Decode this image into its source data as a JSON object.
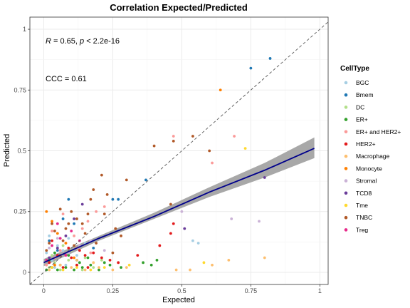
{
  "chart_data": {
    "type": "scatter",
    "title": "Correlation Expected/Predicted",
    "xlabel": "Expected",
    "ylabel": "Predicted",
    "xlim": [
      -0.05,
      1.03
    ],
    "ylim": [
      -0.05,
      1.05
    ],
    "x_ticks": [
      0,
      0.25,
      0.5,
      0.75,
      1
    ],
    "x_tick_labels": [
      "0",
      "0.25",
      "0.5",
      "0.75",
      "1"
    ],
    "y_ticks": [
      0,
      0.25,
      0.5,
      0.75,
      1
    ],
    "y_tick_labels": [
      "0",
      "0.25",
      "0.5",
      "0.75",
      "1"
    ],
    "grid": true,
    "legend_position": "right",
    "annotations": {
      "correlation": {
        "r_label": "R",
        "r_value": " = 0.65, ",
        "p_label": "p",
        "p_value": " < 2.2e-16"
      },
      "ccc": "CCC = 0.61"
    },
    "identity_line": {
      "x": [
        -0.05,
        1.03
      ],
      "y": [
        -0.05,
        1.03
      ],
      "style": "dashed",
      "color": "#555555"
    },
    "regression": {
      "color": "#00008b",
      "x": [
        0,
        0.2,
        0.4,
        0.6,
        0.8,
        0.98
      ],
      "y": [
        0.04,
        0.14,
        0.23,
        0.33,
        0.42,
        0.51
      ],
      "ci_lower": [
        0.025,
        0.13,
        0.22,
        0.31,
        0.39,
        0.47
      ],
      "ci_upper": [
        0.055,
        0.15,
        0.245,
        0.35,
        0.45,
        0.555
      ],
      "ci_color": "#999999"
    },
    "legend_title": "CellType",
    "series": [
      {
        "name": "BGC",
        "color": "#a6cee3",
        "points": [
          [
            0.01,
            0.08
          ],
          [
            0.03,
            0.05
          ],
          [
            0.05,
            0.11
          ],
          [
            0.08,
            0.03
          ],
          [
            0.12,
            0.07
          ],
          [
            0.02,
            0.15
          ],
          [
            0.07,
            0.09
          ],
          [
            0.15,
            0.12
          ],
          [
            0.54,
            0.13
          ],
          [
            0.56,
            0.12
          ],
          [
            0.04,
            0.02
          ],
          [
            0.09,
            0.14
          ]
        ]
      },
      {
        "name": "Bmem",
        "color": "#1f78b4",
        "points": [
          [
            0.75,
            0.84
          ],
          [
            0.82,
            0.88
          ],
          [
            0.37,
            0.38
          ],
          [
            0.25,
            0.3
          ],
          [
            0.27,
            0.3
          ],
          [
            0.07,
            0.22
          ],
          [
            0.09,
            0.3
          ],
          [
            0.02,
            0.13
          ],
          [
            0.12,
            0.05
          ],
          [
            0.05,
            0.09
          ],
          [
            0.11,
            0.2
          ],
          [
            0.18,
            0.1
          ]
        ]
      },
      {
        "name": "DC",
        "color": "#b2df8a",
        "points": [
          [
            0.02,
            0.02
          ],
          [
            0.04,
            0.04
          ],
          [
            0.06,
            0.01
          ],
          [
            0.09,
            0.05
          ],
          [
            0.12,
            0.03
          ],
          [
            0.15,
            0.06
          ],
          [
            0.18,
            0.02
          ],
          [
            0.03,
            0.07
          ],
          [
            0.1,
            0.09
          ],
          [
            0.21,
            0.05
          ],
          [
            0.07,
            0.11
          ],
          [
            0.14,
            0.01
          ]
        ]
      },
      {
        "name": "ER+",
        "color": "#33a02c",
        "points": [
          [
            0.01,
            0.01
          ],
          [
            0.03,
            0.02
          ],
          [
            0.05,
            0.01
          ],
          [
            0.08,
            0.02
          ],
          [
            0.11,
            0.01
          ],
          [
            0.14,
            0.02
          ],
          [
            0.17,
            0.03
          ],
          [
            0.2,
            0.01
          ],
          [
            0.24,
            0.03
          ],
          [
            0.28,
            0.02
          ],
          [
            0.36,
            0.04
          ],
          [
            0.39,
            0.03
          ],
          [
            0.41,
            0.05
          ],
          [
            0.02,
            0.05
          ],
          [
            0.06,
            0.03
          ],
          [
            0.09,
            0.07
          ],
          [
            0.13,
            0.04
          ],
          [
            0.16,
            0.06
          ],
          [
            0.22,
            0.04
          ],
          [
            0.04,
            0.08
          ]
        ]
      },
      {
        "name": "ER+ and HER2+",
        "color": "#fb9a99",
        "points": [
          [
            0.01,
            0.03
          ],
          [
            0.04,
            0.06
          ],
          [
            0.06,
            0.09
          ],
          [
            0.08,
            0.12
          ],
          [
            0.11,
            0.15
          ],
          [
            0.14,
            0.18
          ],
          [
            0.16,
            0.21
          ],
          [
            0.19,
            0.25
          ],
          [
            0.22,
            0.27
          ],
          [
            0.47,
            0.56
          ],
          [
            0.61,
            0.45
          ],
          [
            0.69,
            0.56
          ],
          [
            0.03,
            0.17
          ],
          [
            0.07,
            0.24
          ],
          [
            0.12,
            0.1
          ],
          [
            0.17,
            0.08
          ]
        ]
      },
      {
        "name": "HER2+",
        "color": "#e31a1c",
        "points": [
          [
            0.02,
            0.04
          ],
          [
            0.05,
            0.07
          ],
          [
            0.07,
            0.02
          ],
          [
            0.1,
            0.06
          ],
          [
            0.12,
            0.03
          ],
          [
            0.15,
            0.07
          ],
          [
            0.18,
            0.08
          ],
          [
            0.21,
            0.06
          ],
          [
            0.24,
            0.05
          ],
          [
            0.27,
            0.04
          ],
          [
            0.16,
            0.02
          ],
          [
            0.09,
            0.1
          ],
          [
            0.47,
            0.2
          ],
          [
            0.46,
            0.16
          ],
          [
            0.42,
            0.11
          ],
          [
            0.34,
            0.07
          ],
          [
            0.03,
            0.13
          ],
          [
            0.13,
            0.09
          ]
        ]
      },
      {
        "name": "Macrophage",
        "color": "#fdbf6f",
        "points": [
          [
            0.02,
            0.01
          ],
          [
            0.06,
            0.03
          ],
          [
            0.1,
            0.02
          ],
          [
            0.15,
            0.01
          ],
          [
            0.2,
            0.02
          ],
          [
            0.25,
            0.01
          ],
          [
            0.3,
            0.02
          ],
          [
            0.48,
            0.01
          ],
          [
            0.53,
            0.01
          ],
          [
            0.61,
            0.03
          ],
          [
            0.67,
            0.05
          ],
          [
            0.8,
            0.06
          ],
          [
            0.12,
            0.05
          ],
          [
            0.18,
            0.04
          ]
        ]
      },
      {
        "name": "Monocyte",
        "color": "#ff7f00",
        "points": [
          [
            0.64,
            0.75
          ],
          [
            0.01,
            0.25
          ],
          [
            0.03,
            0.21
          ],
          [
            0.05,
            0.16
          ],
          [
            0.08,
            0.12
          ],
          [
            0.04,
            0.03
          ],
          [
            0.11,
            0.06
          ]
        ]
      },
      {
        "name": "Stromal",
        "color": "#cab2d6",
        "points": [
          [
            0.68,
            0.22
          ],
          [
            0.78,
            0.21
          ],
          [
            0.5,
            0.25
          ],
          [
            0.02,
            0.1
          ],
          [
            0.05,
            0.14
          ],
          [
            0.09,
            0.08
          ],
          [
            0.13,
            0.11
          ],
          [
            0.17,
            0.13
          ],
          [
            0.22,
            0.09
          ]
        ]
      },
      {
        "name": "TCD8",
        "color": "#6a3d9a",
        "points": [
          [
            0.8,
            0.39
          ],
          [
            0.51,
            0.18
          ],
          [
            0.02,
            0.06
          ],
          [
            0.05,
            0.1
          ],
          [
            0.08,
            0.15
          ],
          [
            0.11,
            0.22
          ],
          [
            0.14,
            0.28
          ]
        ]
      },
      {
        "name": "Tme",
        "color": "#ffd92f",
        "points": [
          [
            0.73,
            0.51
          ],
          [
            0.03,
            0.02
          ],
          [
            0.07,
            0.01
          ],
          [
            0.12,
            0.02
          ],
          [
            0.17,
            0.01
          ],
          [
            0.22,
            0.02
          ],
          [
            0.31,
            0.03
          ],
          [
            0.58,
            0.04
          ]
        ]
      },
      {
        "name": "TNBC",
        "color": "#b15928",
        "points": [
          [
            0.21,
            0.4
          ],
          [
            0.3,
            0.38
          ],
          [
            0.4,
            0.52
          ],
          [
            0.47,
            0.54
          ],
          [
            0.54,
            0.56
          ],
          [
            0.6,
            0.5
          ],
          [
            0.46,
            0.28
          ],
          [
            0.03,
            0.2
          ],
          [
            0.06,
            0.26
          ],
          [
            0.08,
            0.18
          ],
          [
            0.1,
            0.25
          ],
          [
            0.12,
            0.22
          ],
          [
            0.15,
            0.16
          ],
          [
            0.17,
            0.3
          ],
          [
            0.19,
            0.12
          ],
          [
            0.22,
            0.24
          ],
          [
            0.25,
            0.08
          ],
          [
            0.02,
            0.12
          ],
          [
            0.04,
            0.17
          ],
          [
            0.07,
            0.13
          ],
          [
            0.09,
            0.2
          ],
          [
            0.14,
            0.2
          ],
          [
            0.16,
            0.24
          ],
          [
            0.26,
            0.18
          ],
          [
            0.28,
            0.15
          ],
          [
            0.23,
            0.32
          ],
          [
            0.18,
            0.34
          ],
          [
            0.01,
            0.09
          ],
          [
            0.06,
            0.07
          ],
          [
            0.11,
            0.11
          ]
        ]
      },
      {
        "name": "Treg",
        "color": "#e7298a",
        "points": [
          [
            0.01,
            0.05
          ],
          [
            0.03,
            0.11
          ],
          [
            0.06,
            0.14
          ],
          [
            0.08,
            0.07
          ],
          [
            0.1,
            0.17
          ],
          [
            0.13,
            0.13
          ],
          [
            0.05,
            0.2
          ]
        ]
      }
    ]
  }
}
